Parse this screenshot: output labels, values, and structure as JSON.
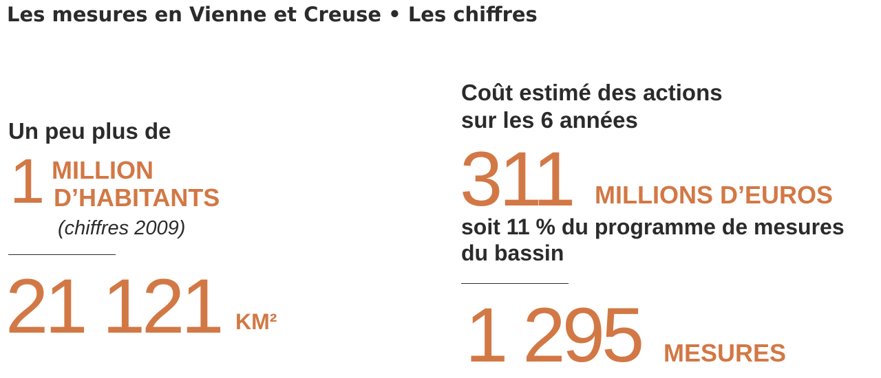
{
  "header": {
    "title": "Les mesures en Vienne et Creuse • Les chiffres"
  },
  "left": {
    "population": {
      "intro": "Un peu plus de",
      "number": "1",
      "unit_line1": "MILLION",
      "unit_line2": "D’HABITANTS",
      "note": "(chiffres 2009)"
    },
    "area": {
      "number": "21 121",
      "unit": "KM²"
    }
  },
  "right": {
    "cost": {
      "intro_line1": "Coût estimé des actions",
      "intro_line2": "sur les 6 années",
      "number": "311",
      "unit": "MILLIONS D’EUROS",
      "detail_line1": "soit 11 % du programme de mesures",
      "detail_line2": "du bassin"
    },
    "measures": {
      "number": "1 295",
      "unit": "MESURES"
    }
  },
  "colors": {
    "accent": "#d27845",
    "text": "#2b2b2b",
    "background": "#ffffff"
  }
}
